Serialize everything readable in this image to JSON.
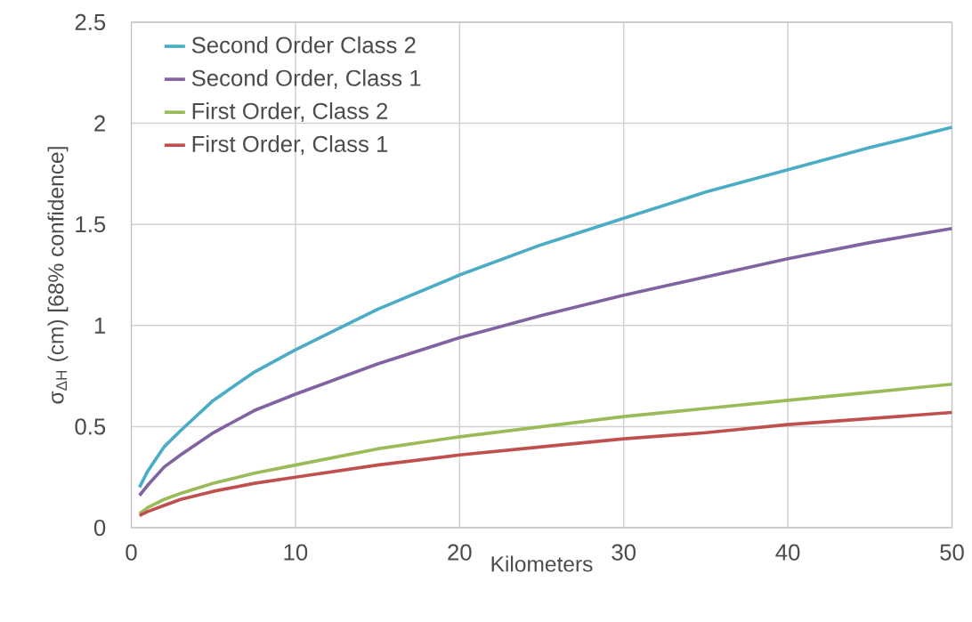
{
  "chart_data": {
    "type": "line",
    "xlabel": "Kilometers",
    "ylabel": "σ$_{ΔH}$ (cm)   [68% confidence]",
    "xlim": [
      0,
      50
    ],
    "xticks": [
      0,
      10,
      20,
      30,
      40,
      50
    ],
    "ylim": [
      0,
      2.5
    ],
    "yticks": [
      0,
      0.5,
      1,
      1.5,
      2,
      2.5
    ],
    "grid": true,
    "legend": "top left",
    "marker": "none",
    "line_style": "solid",
    "x": [
      0.5,
      1,
      2,
      3,
      5,
      7.5,
      10,
      15,
      20,
      25,
      30,
      35,
      40,
      45,
      50
    ],
    "series": [
      {
        "name": "Second Order Class 2",
        "color": "#4bacc6",
        "values": [
          0.2,
          0.28,
          0.4,
          0.48,
          0.63,
          0.77,
          0.88,
          1.08,
          1.25,
          1.4,
          1.53,
          1.66,
          1.77,
          1.88,
          1.98
        ]
      },
      {
        "name": "Second Order, Class 1",
        "color": "#8064a2",
        "values": [
          0.16,
          0.21,
          0.3,
          0.36,
          0.47,
          0.58,
          0.66,
          0.81,
          0.94,
          1.05,
          1.15,
          1.24,
          1.33,
          1.41,
          1.48
        ]
      },
      {
        "name": "First Order, Class 2",
        "color": "#9bbb59",
        "values": [
          0.07,
          0.1,
          0.14,
          0.17,
          0.22,
          0.27,
          0.31,
          0.39,
          0.45,
          0.5,
          0.55,
          0.59,
          0.63,
          0.67,
          0.71
        ]
      },
      {
        "name": "First Order, Class 1",
        "color": "#c0504d",
        "values": [
          0.06,
          0.08,
          0.11,
          0.14,
          0.18,
          0.22,
          0.25,
          0.31,
          0.36,
          0.4,
          0.44,
          0.47,
          0.51,
          0.54,
          0.57
        ]
      }
    ]
  }
}
